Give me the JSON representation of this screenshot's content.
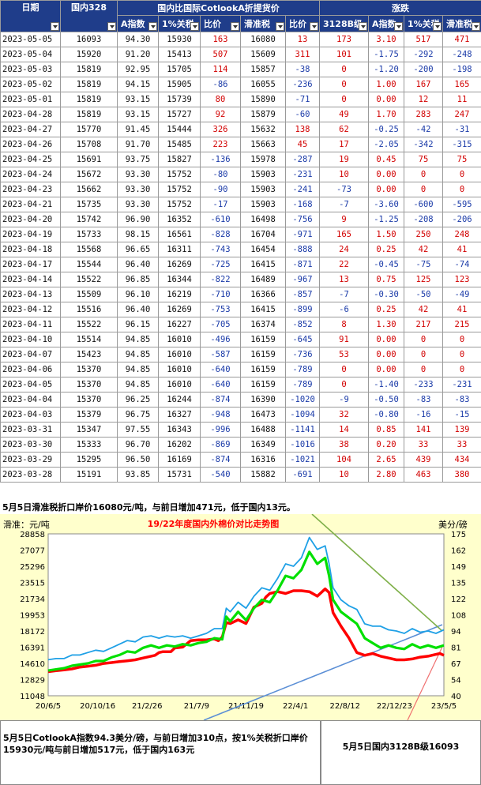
{
  "table": {
    "group_headers": [
      "国内比国际CotlookA折提货价",
      "涨跌"
    ],
    "columns": [
      "日期",
      "国内328",
      "A指数",
      "1%关税",
      "比价",
      "滑准税",
      "比价",
      "3128B级",
      "A指数",
      "1%关税",
      "滑准税"
    ],
    "rows": [
      [
        "2023-05-05",
        "16093",
        "94.30",
        "15930",
        "163",
        "16080",
        "13",
        "173",
        "3.10",
        "517",
        "471"
      ],
      [
        "2023-05-04",
        "15920",
        "91.20",
        "15413",
        "507",
        "15609",
        "311",
        "101",
        "-1.75",
        "-292",
        "-248"
      ],
      [
        "2023-05-03",
        "15819",
        "92.95",
        "15705",
        "114",
        "15857",
        "-38",
        "0",
        "-1.20",
        "-200",
        "-198"
      ],
      [
        "2023-05-02",
        "15819",
        "94.15",
        "15905",
        "-86",
        "16055",
        "-236",
        "0",
        "1.00",
        "167",
        "165"
      ],
      [
        "2023-05-01",
        "15819",
        "93.15",
        "15739",
        "80",
        "15890",
        "-71",
        "0",
        "0.00",
        "12",
        "11"
      ],
      [
        "2023-04-28",
        "15819",
        "93.15",
        "15727",
        "92",
        "15879",
        "-60",
        "49",
        "1.70",
        "283",
        "247"
      ],
      [
        "2023-04-27",
        "15770",
        "91.45",
        "15444",
        "326",
        "15632",
        "138",
        "62",
        "-0.25",
        "-42",
        "-31"
      ],
      [
        "2023-04-26",
        "15708",
        "91.70",
        "15485",
        "223",
        "15663",
        "45",
        "17",
        "-2.05",
        "-342",
        "-315"
      ],
      [
        "2023-04-25",
        "15691",
        "93.75",
        "15827",
        "-136",
        "15978",
        "-287",
        "19",
        "0.45",
        "75",
        "75"
      ],
      [
        "2023-04-24",
        "15672",
        "93.30",
        "15752",
        "-80",
        "15903",
        "-231",
        "10",
        "0.00",
        "0",
        "0"
      ],
      [
        "2023-04-23",
        "15662",
        "93.30",
        "15752",
        "-90",
        "15903",
        "-241",
        "-73",
        "0.00",
        "0",
        "0"
      ],
      [
        "2023-04-21",
        "15735",
        "93.30",
        "15752",
        "-17",
        "15903",
        "-168",
        "-7",
        "-3.60",
        "-600",
        "-595"
      ],
      [
        "2023-04-20",
        "15742",
        "96.90",
        "16352",
        "-610",
        "16498",
        "-756",
        "9",
        "-1.25",
        "-208",
        "-206"
      ],
      [
        "2023-04-19",
        "15733",
        "98.15",
        "16561",
        "-828",
        "16704",
        "-971",
        "165",
        "1.50",
        "250",
        "248"
      ],
      [
        "2023-04-18",
        "15568",
        "96.65",
        "16311",
        "-743",
        "16454",
        "-888",
        "24",
        "0.25",
        "42",
        "41"
      ],
      [
        "2023-04-17",
        "15544",
        "96.40",
        "16269",
        "-725",
        "16415",
        "-871",
        "22",
        "-0.45",
        "-75",
        "-74"
      ],
      [
        "2023-04-14",
        "15522",
        "96.85",
        "16344",
        "-822",
        "16489",
        "-967",
        "13",
        "0.75",
        "125",
        "123"
      ],
      [
        "2023-04-13",
        "15509",
        "96.10",
        "16219",
        "-710",
        "16366",
        "-857",
        "-7",
        "-0.30",
        "-50",
        "-49"
      ],
      [
        "2023-04-12",
        "15516",
        "96.40",
        "16269",
        "-753",
        "16415",
        "-899",
        "-6",
        "0.25",
        "42",
        "41"
      ],
      [
        "2023-04-11",
        "15522",
        "96.15",
        "16227",
        "-705",
        "16374",
        "-852",
        "8",
        "1.30",
        "217",
        "215"
      ],
      [
        "2023-04-10",
        "15514",
        "94.85",
        "16010",
        "-496",
        "16159",
        "-645",
        "91",
        "0.00",
        "0",
        "0"
      ],
      [
        "2023-04-07",
        "15423",
        "94.85",
        "16010",
        "-587",
        "16159",
        "-736",
        "53",
        "0.00",
        "0",
        "0"
      ],
      [
        "2023-04-06",
        "15370",
        "94.85",
        "16010",
        "-640",
        "16159",
        "-789",
        "0",
        "0.00",
        "0",
        "0"
      ],
      [
        "2023-04-05",
        "15370",
        "94.85",
        "16010",
        "-640",
        "16159",
        "-789",
        "0",
        "-1.40",
        "-233",
        "-231"
      ],
      [
        "2023-04-04",
        "15370",
        "96.25",
        "16244",
        "-874",
        "16390",
        "-1020",
        "-9",
        "-0.50",
        "-83",
        "-83"
      ],
      [
        "2023-04-03",
        "15379",
        "96.75",
        "16327",
        "-948",
        "16473",
        "-1094",
        "32",
        "-0.80",
        "-16",
        "-15"
      ],
      [
        "2023-03-31",
        "15347",
        "97.55",
        "16343",
        "-996",
        "16488",
        "-1141",
        "14",
        "0.85",
        "141",
        "139"
      ],
      [
        "2023-03-30",
        "15333",
        "96.70",
        "16202",
        "-869",
        "16349",
        "-1016",
        "38",
        "0.20",
        "33",
        "33"
      ],
      [
        "2023-03-29",
        "15295",
        "96.50",
        "16169",
        "-874",
        "16316",
        "-1021",
        "104",
        "2.65",
        "439",
        "434"
      ],
      [
        "2023-03-28",
        "15191",
        "93.85",
        "15731",
        "-540",
        "15882",
        "-691",
        "10",
        "2.80",
        "463",
        "380"
      ]
    ]
  },
  "notes": {
    "top": "5月5日滑准税折口岸价16080元/吨，与前日增加471元，低于国内13元。",
    "bottom_left": "5月5日CotlookA指数94.3美分/磅，与前日增加310点，按1%关税折口岸价15930元/吨与前日增加517元，低于国内163元",
    "bottom_right": "5月5日国内3128B级16093"
  },
  "chart_data": {
    "type": "line",
    "title": "19/22年度国内外棉价对比走势图",
    "left_axis_label": "滑准：元/吨",
    "right_axis_label": "美分/磅",
    "left_ticks": [
      "28858",
      "27077",
      "25296",
      "23515",
      "21734",
      "19953",
      "18172",
      "16391",
      "14610",
      "12829",
      "11048"
    ],
    "right_ticks": [
      "175",
      "162",
      "149",
      "135",
      "122",
      "108",
      "94",
      "81",
      "67",
      "54",
      "40"
    ],
    "ylim_left": [
      11048,
      28858
    ],
    "ylim_right": [
      40,
      175
    ],
    "x_ticks": [
      "20/6/5",
      "20/10/16",
      "21/2/26",
      "21/7/9",
      "21/11/19",
      "22/4/1",
      "22/8/12",
      "22/12/23",
      "23/5/5"
    ],
    "series": [
      {
        "color": "#ff0000",
        "axis": "left",
        "x": [
          0,
          2,
          4,
          6,
          8,
          10,
          12,
          14,
          16,
          18,
          20,
          22,
          24,
          26,
          27,
          28,
          29,
          31,
          32,
          34,
          36,
          38,
          40,
          42,
          43,
          44,
          45,
          46,
          48,
          50,
          52,
          54,
          55,
          56,
          58,
          60,
          62,
          64,
          66,
          68,
          70,
          71,
          72,
          74,
          76,
          78,
          80,
          82,
          84,
          86,
          88,
          90,
          92,
          94,
          96,
          98,
          99,
          100
        ],
        "values": [
          13700,
          13800,
          13900,
          14000,
          14200,
          14300,
          14400,
          14600,
          14700,
          14800,
          14900,
          15000,
          15200,
          15400,
          15500,
          15800,
          15900,
          15900,
          16300,
          16400,
          17100,
          17200,
          17200,
          17300,
          17100,
          17500,
          19100,
          19000,
          19400,
          19000,
          20800,
          21200,
          21900,
          22300,
          22500,
          22300,
          22600,
          22600,
          22500,
          22000,
          22800,
          22400,
          20200,
          18700,
          17400,
          15800,
          15500,
          15700,
          15400,
          15200,
          15000,
          15000,
          15100,
          15300,
          15400,
          15600,
          15700,
          15500
        ]
      },
      {
        "color": "#1ea0e6",
        "axis": "right",
        "x": [
          0,
          2,
          4,
          6,
          8,
          10,
          12,
          14,
          16,
          18,
          20,
          22,
          24,
          26,
          28,
          30,
          32,
          34,
          36,
          38,
          40,
          42,
          44,
          45,
          46,
          48,
          50,
          52,
          54,
          56,
          58,
          60,
          62,
          64,
          66,
          68,
          70,
          71,
          72,
          74,
          76,
          78,
          80,
          82,
          84,
          86,
          88,
          90,
          92,
          94,
          96,
          98,
          100
        ],
        "values": [
          70,
          71,
          71,
          74,
          74,
          76,
          78,
          77,
          80,
          83,
          86,
          85,
          89,
          90,
          88,
          90,
          89,
          90,
          88,
          90,
          92,
          96,
          96,
          113,
          110,
          118,
          113,
          123,
          130,
          128,
          138,
          150,
          148,
          155,
          172,
          162,
          165,
          150,
          130,
          120,
          115,
          112,
          100,
          98,
          98,
          95,
          94,
          92,
          96,
          93,
          94,
          92,
          95
        ]
      },
      {
        "color": "#00e000",
        "axis": "right",
        "x": [
          0,
          2,
          4,
          6,
          8,
          10,
          12,
          14,
          16,
          18,
          20,
          22,
          24,
          26,
          28,
          30,
          32,
          34,
          36,
          38,
          40,
          42,
          44,
          45,
          46,
          48,
          50,
          52,
          54,
          56,
          58,
          60,
          62,
          64,
          66,
          68,
          70,
          71,
          72,
          74,
          76,
          78,
          80,
          82,
          84,
          86,
          88,
          90,
          92,
          94,
          96,
          98,
          100
        ],
        "values": [
          61,
          62,
          63,
          65,
          66,
          67,
          69,
          69,
          72,
          74,
          77,
          76,
          80,
          82,
          80,
          82,
          81,
          83,
          82,
          84,
          85,
          88,
          87,
          106,
          102,
          110,
          103,
          113,
          120,
          118,
          128,
          140,
          138,
          145,
          160,
          150,
          155,
          140,
          120,
          110,
          105,
          100,
          88,
          84,
          80,
          82,
          80,
          79,
          83,
          80,
          82,
          80,
          82
        ]
      }
    ],
    "annotation_lines": [
      {
        "color": "#5b8fd6"
      },
      {
        "color": "#7fb04a"
      },
      {
        "color": "#f07070"
      }
    ]
  }
}
